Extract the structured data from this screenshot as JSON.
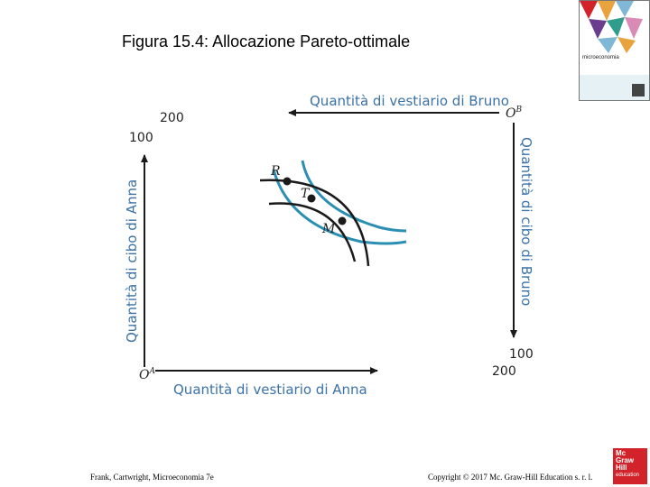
{
  "title": "Figura 15.4: Allocazione Pareto-ottimale",
  "book_cover": {
    "title": "microeconomia",
    "colors": [
      "#d2232a",
      "#e8a33c",
      "#7fb7d6",
      "#6a3d8f",
      "#2f9c8c"
    ]
  },
  "diagram": {
    "label_top": "Quantità di vestiario di Bruno",
    "label_bottom": "Quantità di vestiario di Anna",
    "label_left": "Quantità di cibo di Anna",
    "label_right": "Quantità di cibo di Bruno",
    "origin_anna": "O",
    "origin_anna_sup": "A",
    "origin_bruno": "O",
    "origin_bruno_sup": "B",
    "tick_top_left": "200",
    "tick_left_top": "100",
    "tick_right_bottom": "100",
    "tick_bottom_right": "200",
    "point_R": "R",
    "point_T": "T",
    "point_M": "M",
    "axis_color": "#1a1a1a",
    "label_color": "#3a72a8",
    "curve_anna_color": "#2a8fb2",
    "curve_bruno_color": "#1a1a1a"
  },
  "footer": {
    "left": "Frank, Cartwright, Microeconomia 7e",
    "right": "Copyright © 2017 Mc. Graw-Hill Education s. r. l."
  },
  "logo": {
    "line1": "Mc",
    "line2": "Graw",
    "line3": "Hill",
    "line4": "education"
  }
}
